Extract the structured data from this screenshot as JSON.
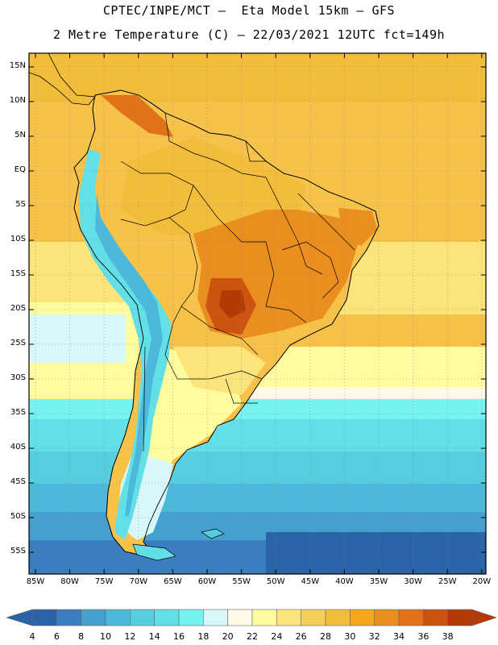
{
  "header": {
    "line1": "CPTEC/INPE/MCT –  Eta Model 15km – GFS",
    "line2": "2 Metre Temperature (C) – 22/03/2021 12UTC fct=149h"
  },
  "map": {
    "lat_labels": [
      "15N",
      "10N",
      "5N",
      "EQ",
      "5S",
      "10S",
      "15S",
      "20S",
      "25S",
      "30S",
      "35S",
      "40S",
      "45S",
      "50S",
      "55S"
    ],
    "lon_labels": [
      "85W",
      "80W",
      "75W",
      "70W",
      "65W",
      "60W",
      "55W",
      "50W",
      "45W",
      "40W",
      "35W",
      "30W",
      "25W",
      "20W"
    ],
    "lat_range": [
      -57,
      16
    ],
    "lon_range": [
      -86,
      -20
    ],
    "grid": true,
    "ocean_color": "#f6c24a",
    "land_border_color": "#000000"
  },
  "colorbar": {
    "ticks": [
      "4",
      "6",
      "8",
      "10",
      "12",
      "14",
      "16",
      "18",
      "20",
      "22",
      "24",
      "26",
      "28",
      "30",
      "32",
      "34",
      "36",
      "38"
    ],
    "colors": [
      "#2a63a8",
      "#3a7ec0",
      "#45a0cf",
      "#4db9da",
      "#57cde0",
      "#63dfe8",
      "#77f2f2",
      "#d8f7fb",
      "#fffbe6",
      "#fffca0",
      "#fbe47a",
      "#f5cf5a",
      "#f1bd3a",
      "#f2a81a",
      "#ea8e1f",
      "#e0721a",
      "#cc5410",
      "#b33a05"
    ],
    "low_color": "#2a63a8",
    "high_color": "#b33a05"
  }
}
